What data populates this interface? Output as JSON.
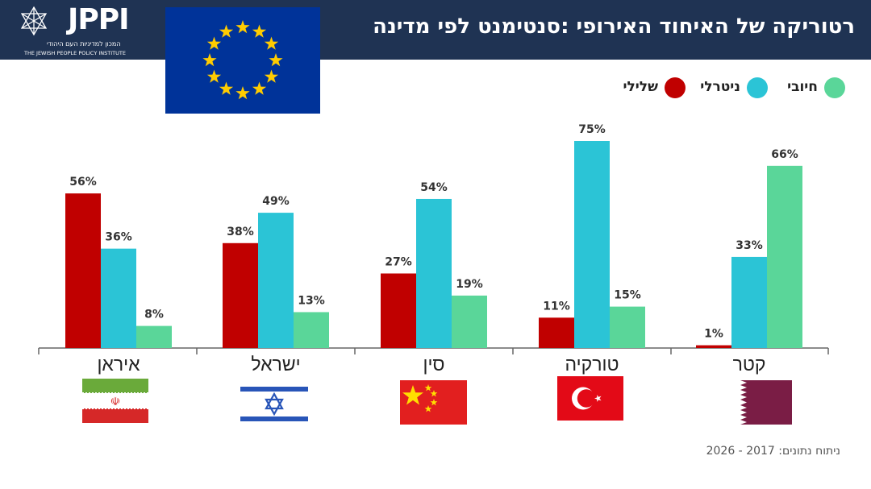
{
  "header": {
    "title": "רטוריקה של האיחוד האירופי :סנטימנט לפי מדינה",
    "logo_name": "JPPI",
    "logo_subtitle_he": "המכון למדיניות העם היהודי",
    "logo_subtitle_en": "THE JEWISH PEOPLE POLICY INSTITUTE"
  },
  "colors": {
    "header_bg": "#1f3353",
    "negative": "#c00000",
    "neutral": "#2bc4d6",
    "positive": "#5ad699"
  },
  "legend": {
    "positive": "חיובי",
    "neutral": "ניטרלי",
    "negative": "שלילי"
  },
  "chart_data": {
    "type": "bar",
    "categories": [
      "איראן",
      "ישראל",
      "סין",
      "טורקיה",
      "קטר"
    ],
    "series": [
      {
        "name": "שלילי",
        "color": "#c00000",
        "values": [
          56,
          38,
          27,
          11,
          1
        ],
        "labels": [
          "56%",
          "38%",
          "27%",
          "11%",
          "1%"
        ]
      },
      {
        "name": "ניטרלי",
        "color": "#2bc4d6",
        "values": [
          36,
          49,
          54,
          75,
          33
        ],
        "labels": [
          "36%",
          "49%",
          "54%",
          "75%",
          "33%"
        ]
      },
      {
        "name": "חיובי",
        "color": "#5ad699",
        "values": [
          8,
          13,
          19,
          15,
          66
        ],
        "labels": [
          "8%",
          "13%",
          "19%",
          "15%",
          "66%"
        ]
      }
    ],
    "ylim": [
      0,
      75
    ],
    "grid": false,
    "legend_position": "top-right",
    "flag_icons": [
      "iran-flag-icon",
      "israel-flag-icon",
      "china-flag-icon",
      "turkey-flag-icon",
      "qatar-flag-icon"
    ]
  },
  "footnote": "ניתוח נתונים: 2017 - 2026"
}
